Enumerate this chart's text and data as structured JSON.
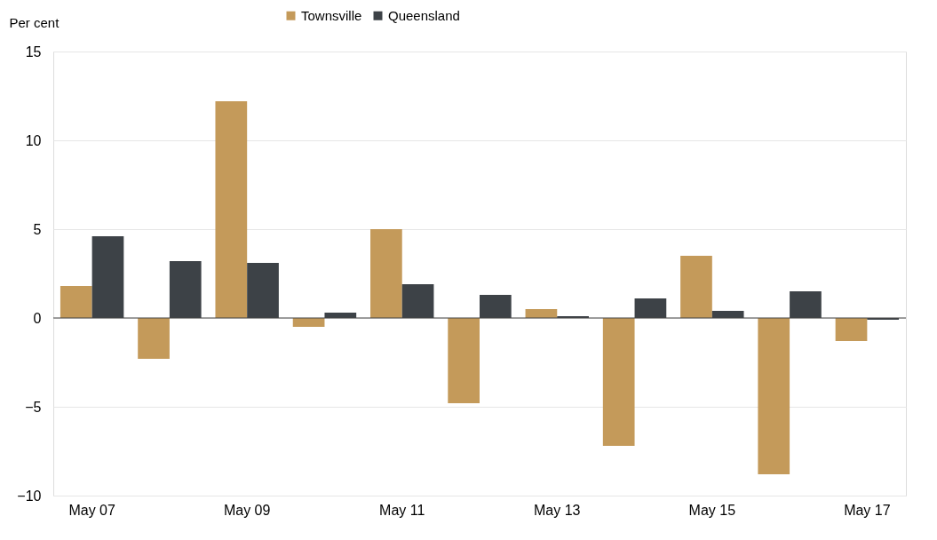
{
  "chart_data": {
    "type": "bar",
    "ylabel": "Per cent",
    "categories": [
      "May 07",
      null,
      "May 09",
      null,
      "May 11",
      null,
      "May 13",
      null,
      "May 15",
      null,
      "May 17"
    ],
    "series": [
      {
        "name": "Townsville",
        "color": "#c49a5a",
        "values": [
          1.8,
          -2.3,
          12.2,
          -0.5,
          5.0,
          -4.8,
          0.5,
          -7.2,
          3.5,
          -8.8,
          -1.3
        ]
      },
      {
        "name": "Queensland",
        "color": "#3d4247",
        "values": [
          4.6,
          3.2,
          3.1,
          0.3,
          1.9,
          1.3,
          0.1,
          1.1,
          0.4,
          1.5,
          -0.1
        ]
      }
    ],
    "ylim": [
      -10,
      15
    ],
    "yticks": [
      -10,
      -5,
      0,
      5,
      10,
      15
    ],
    "grid": "y",
    "legend": "top"
  }
}
